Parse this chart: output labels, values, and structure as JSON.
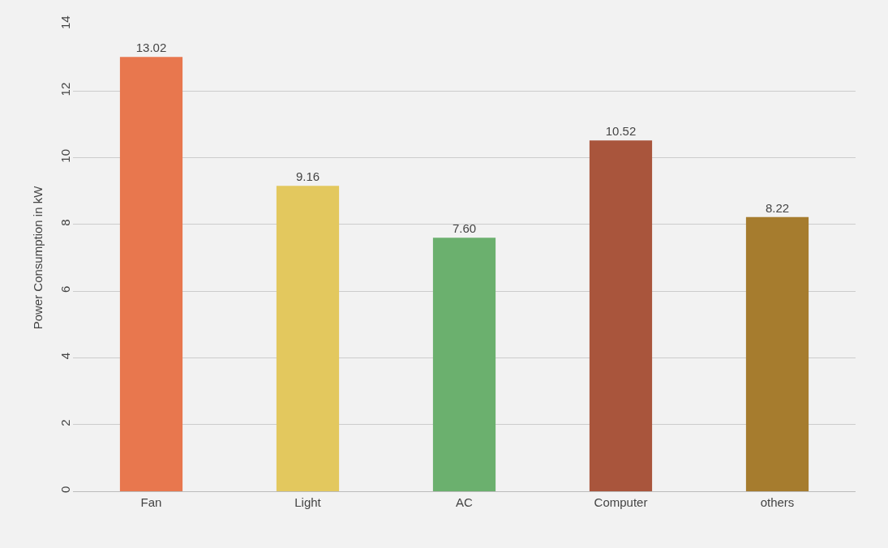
{
  "chart_data": {
    "type": "bar",
    "ylabel": "Power Consumption in kW",
    "categories": [
      "Fan",
      "Light",
      "AC",
      "Computer",
      "others"
    ],
    "values": [
      13.02,
      9.16,
      7.6,
      10.52,
      8.22
    ],
    "value_labels": [
      "13.02",
      "9.16",
      "7.60",
      "10.52",
      "8.22"
    ],
    "colors": [
      "#e8774e",
      "#e3c85e",
      "#6bb06e",
      "#a9553c",
      "#a67c2e"
    ],
    "ylim": [
      0,
      14
    ],
    "yticks": [
      0,
      2,
      4,
      6,
      8,
      10,
      12,
      14
    ],
    "grid": "y"
  }
}
